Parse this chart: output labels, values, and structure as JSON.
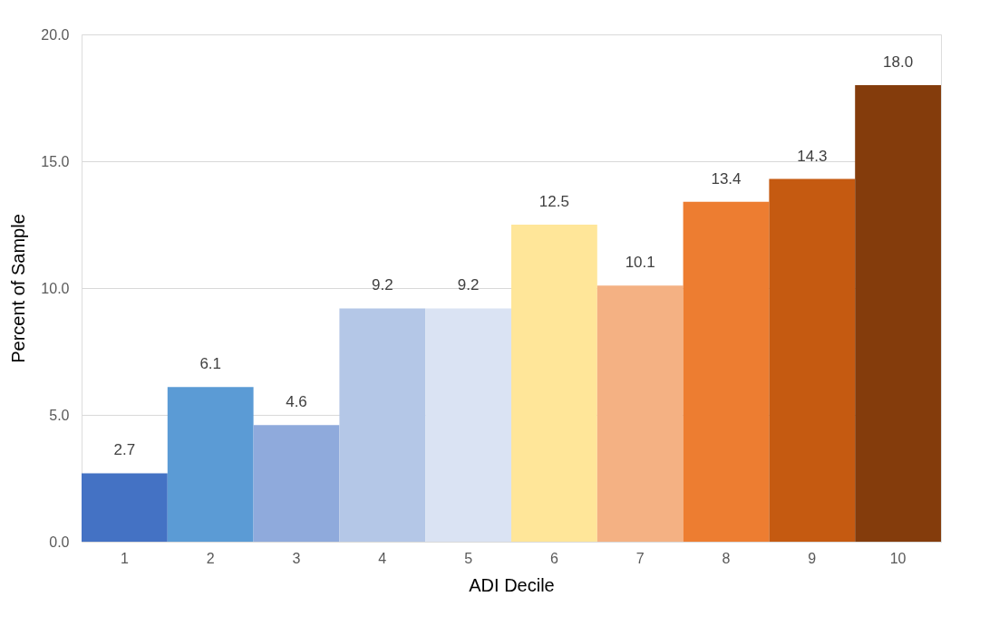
{
  "chart_data": {
    "type": "bar",
    "xlabel": "ADI Decile",
    "ylabel": "Percent of Sample",
    "categories": [
      "1",
      "2",
      "3",
      "4",
      "5",
      "6",
      "7",
      "8",
      "9",
      "10"
    ],
    "values": [
      2.7,
      6.1,
      4.6,
      9.2,
      9.2,
      12.5,
      10.1,
      13.4,
      14.3,
      18.0
    ],
    "colors": [
      "#4472c4",
      "#5b9bd5",
      "#8faadc",
      "#b4c7e7",
      "#dae3f3",
      "#ffe699",
      "#f4b183",
      "#ed7d31",
      "#c55a11",
      "#843c0c"
    ],
    "value_labels": [
      "2.7",
      "6.1",
      "4.6",
      "9.2",
      "9.2",
      "12.5",
      "10.1",
      "13.4",
      "14.3",
      "18.0"
    ],
    "ylim": [
      0,
      20
    ],
    "yticks": [
      {
        "value": 0,
        "label": "0.0"
      },
      {
        "value": 5,
        "label": "5.0"
      },
      {
        "value": 10,
        "label": "10.0"
      },
      {
        "value": 15,
        "label": "15.0"
      },
      {
        "value": 20,
        "label": "20.0"
      }
    ],
    "grid": "y",
    "legend": false
  }
}
